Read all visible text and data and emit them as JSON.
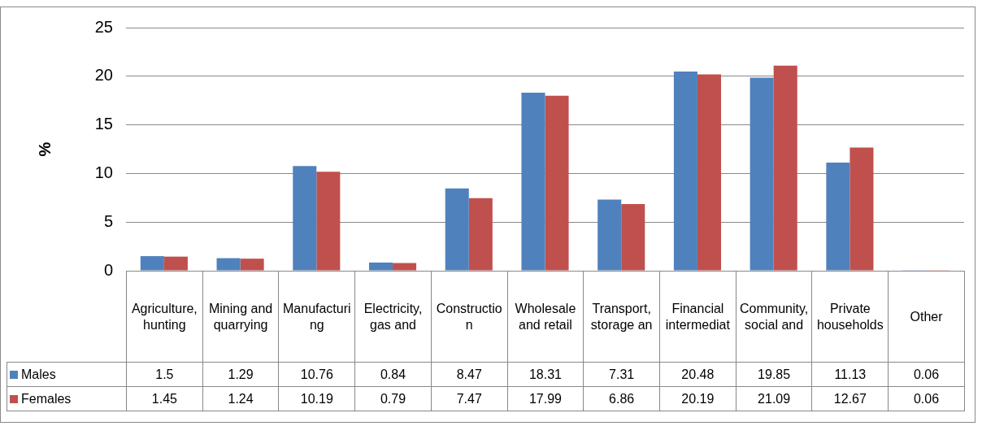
{
  "chart_data": {
    "type": "bar",
    "ylabel": "%",
    "categories": [
      "Agriculture, hunting",
      "Mining and quarrying",
      "Manufacturing",
      "Electricity, gas and",
      "Construction",
      "Wholesale and retail",
      "Transport, storage an",
      "Financial intermediat",
      "Community, social and",
      "Private households",
      "Other"
    ],
    "series": [
      {
        "name": "Males",
        "color": "#4f81bd",
        "values": [
          1.5,
          1.29,
          10.76,
          0.84,
          8.47,
          18.31,
          7.31,
          20.48,
          19.85,
          11.13,
          0.06
        ]
      },
      {
        "name": "Females",
        "color": "#c0504d",
        "values": [
          1.45,
          1.24,
          10.19,
          0.79,
          7.47,
          17.99,
          6.86,
          20.19,
          21.09,
          12.67,
          0.06
        ]
      }
    ],
    "ylim": [
      0,
      25
    ],
    "yticks": [
      0,
      5,
      10,
      15,
      20,
      25
    ],
    "grid": "y",
    "legend": "bottom",
    "data_labels": true
  }
}
